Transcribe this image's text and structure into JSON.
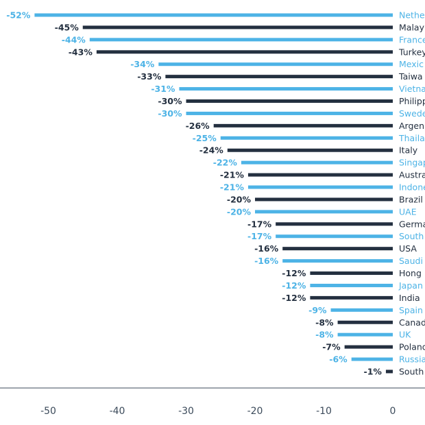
{
  "chart_data": {
    "type": "bar",
    "orientation": "horizontal",
    "categories": [
      "Netherlands",
      "Malaysia",
      "France",
      "Turkey",
      "Mexico",
      "Taiwan",
      "Vietnam",
      "Philippines",
      "Sweden",
      "Argentina",
      "Thailand",
      "Italy",
      "Singapore",
      "Australia",
      "Indonesia",
      "Brazil",
      "UAE",
      "Germany",
      "South",
      "USA",
      "Saudi",
      "Hong",
      "Japan",
      "India",
      "Spain",
      "Canada",
      "UK",
      "Poland",
      "Russia",
      "South"
    ],
    "category_display": [
      "Nethe",
      "Malay",
      "France",
      "Turkey",
      "Mexic",
      "Taiwa",
      "Vietna",
      "Philipp",
      "Swede",
      "Argen",
      "Thaila",
      "Italy",
      "Singap",
      "Austra",
      "Indone",
      "Brazil",
      "UAE",
      "Germa",
      "South",
      "USA",
      "Saudi",
      "Hong",
      "Japan",
      "India",
      "Spain",
      "Canada",
      "UK",
      "Poland",
      "Russia",
      "South"
    ],
    "values": [
      -52,
      -45,
      -44,
      -43,
      -34,
      -33,
      -31,
      -30,
      -30,
      -26,
      -25,
      -24,
      -22,
      -21,
      -21,
      -20,
      -20,
      -17,
      -17,
      -16,
      -16,
      -12,
      -12,
      -12,
      -9,
      -8,
      -8,
      -7,
      -6,
      -1
    ],
    "value_labels": [
      "-52%",
      "-45%",
      "-44%",
      "-43%",
      "-34%",
      "-33%",
      "-31%",
      "-30%",
      "-30%",
      "-26%",
      "-25%",
      "-24%",
      "-22%",
      "-21%",
      "-21%",
      "-20%",
      "-20%",
      "-17%",
      "-17%",
      "-16%",
      "-16%",
      "-12%",
      "-12%",
      "-12%",
      "-9%",
      "-8%",
      "-8%",
      "-7%",
      "-6%",
      "-1%"
    ],
    "bar_colors": [
      "#4db3e6",
      "#243040",
      "#4db3e6",
      "#243040",
      "#4db3e6",
      "#243040",
      "#4db3e6",
      "#243040",
      "#4db3e6",
      "#243040",
      "#4db3e6",
      "#243040",
      "#4db3e6",
      "#243040",
      "#4db3e6",
      "#243040",
      "#4db3e6",
      "#243040",
      "#4db3e6",
      "#243040",
      "#4db3e6",
      "#243040",
      "#4db3e6",
      "#243040",
      "#4db3e6",
      "#243040",
      "#4db3e6",
      "#243040",
      "#4db3e6",
      "#243040"
    ],
    "xlim": [
      -57,
      0
    ],
    "x_ticks": [
      -50,
      -40,
      -30,
      -20,
      -10,
      0
    ],
    "x_tick_labels": [
      "-50",
      "-40",
      "-30",
      "-20",
      "-10",
      "0"
    ],
    "grid": false,
    "colors": {
      "light": "#4db3e6",
      "dark": "#243040",
      "axis": "#3b4a5a"
    }
  }
}
